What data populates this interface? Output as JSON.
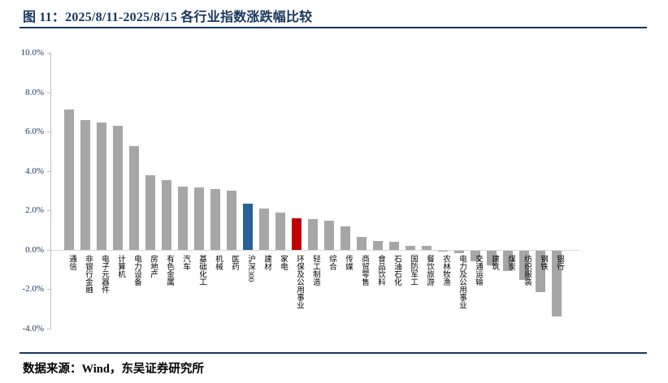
{
  "header": {
    "title": "图 11：2025/8/11-2025/8/15 各行业指数涨跌幅比较"
  },
  "footer": {
    "source": "数据来源：Wind，东吴证券研究所"
  },
  "colors": {
    "title_navy": "#17365D",
    "bar_default": "#A6A6A6",
    "bar_blue": "#2B6194",
    "bar_red": "#C00000",
    "axis_line": "#BFBFBF",
    "zero_line": "#D9D9D9",
    "tick_text": "#1F3864"
  },
  "chart_data": {
    "type": "bar",
    "title": "2025/8/11-2025/8/15 各行业指数涨跌幅比较",
    "xlabel": "",
    "ylabel": "",
    "unit": "%",
    "grid": false,
    "legend": false,
    "ylim": [
      -4,
      10
    ],
    "ytick_step": 2,
    "ytick_labels": [
      "10.0%",
      "8.0%",
      "6.0%",
      "4.0%",
      "2.0%",
      "0.0%",
      "-2.0%",
      "-4.0%"
    ],
    "categories": [
      "通信",
      "非银行金融",
      "电子元器件",
      "计算机",
      "电力设备",
      "房地产",
      "有色金属",
      "汽车",
      "基础化工",
      "机械",
      "医药",
      "沪深300",
      "建材",
      "家电",
      "环保及公用事业",
      "轻工制造",
      "综合",
      "传媒",
      "商贸零售",
      "食品饮料",
      "石油石化",
      "国防军工",
      "餐饮旅游",
      "农林牧渔",
      "电力及公用事业",
      "交通运输",
      "建筑",
      "煤炭",
      "纺织服装",
      "钢铁",
      "银行"
    ],
    "values": [
      7.1,
      6.6,
      6.45,
      6.3,
      5.25,
      3.8,
      3.55,
      3.2,
      3.15,
      3.1,
      3.0,
      2.35,
      2.1,
      1.9,
      1.6,
      1.55,
      1.48,
      1.2,
      0.65,
      0.45,
      0.4,
      0.2,
      0.18,
      -0.05,
      -0.15,
      -0.55,
      -0.75,
      -1.05,
      -1.5,
      -2.1,
      -3.35
    ],
    "highlight_indices": {
      "blue": 11,
      "red": 14
    },
    "highlight_meaning": {
      "blue": "沪深300",
      "red": "环保及公用事业"
    }
  }
}
